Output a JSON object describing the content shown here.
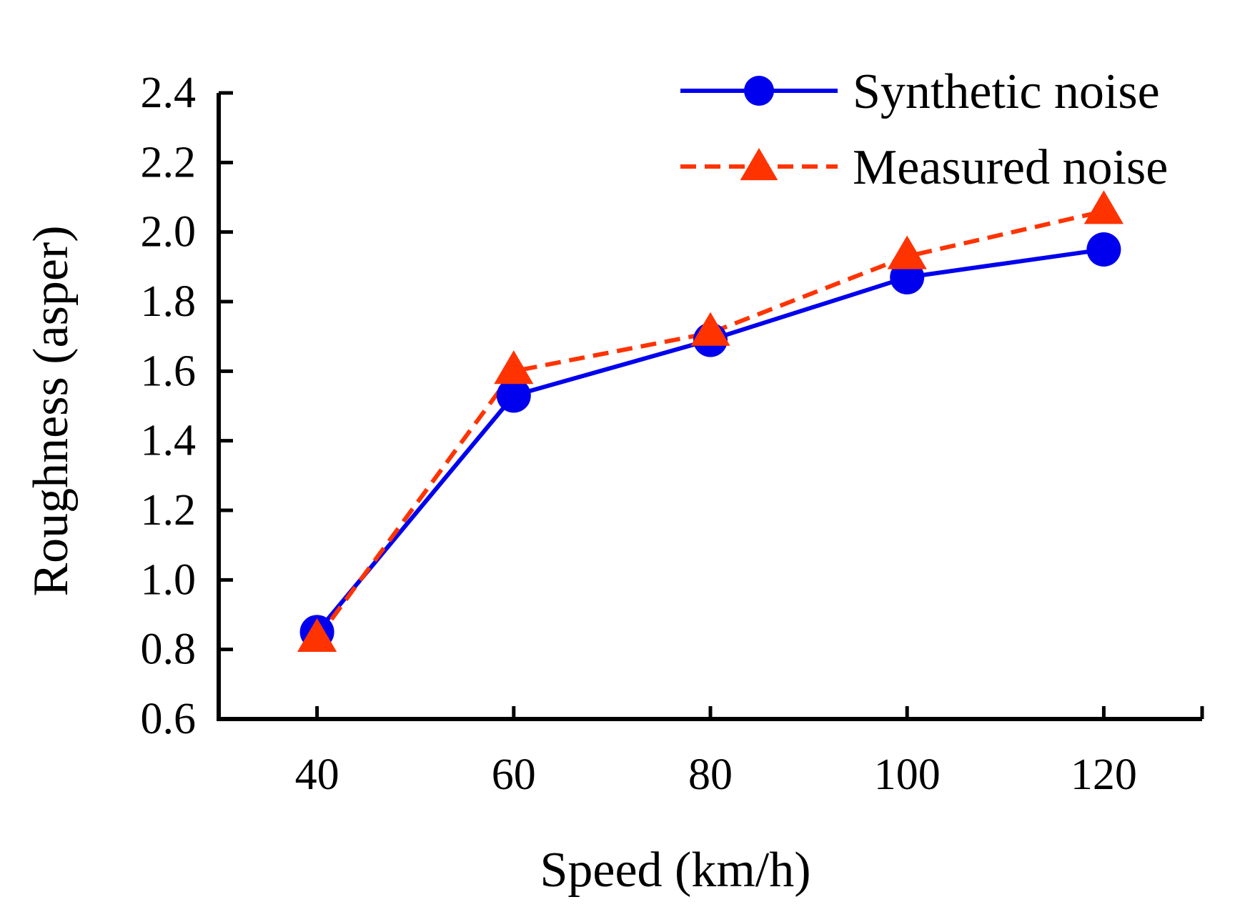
{
  "chart_data": {
    "type": "line",
    "title": "",
    "xlabel": "Speed (km/h)",
    "ylabel": "Roughness (asper)",
    "x": [
      40,
      60,
      80,
      100,
      120
    ],
    "x_tick_labels": [
      "40",
      "60",
      "80",
      "100",
      "120"
    ],
    "xlim": [
      30,
      130
    ],
    "ylim": [
      0.6,
      2.4
    ],
    "y_ticks": [
      0.6,
      0.8,
      1.0,
      1.2,
      1.4,
      1.6,
      1.8,
      2.0,
      2.2,
      2.4
    ],
    "y_tick_labels": [
      "0.6",
      "0.8",
      "1.0",
      "1.2",
      "1.4",
      "1.6",
      "1.8",
      "2.0",
      "2.2",
      "2.4"
    ],
    "grid": false,
    "legend_position": "top-right",
    "series": [
      {
        "name": "Synthetic noise",
        "values": [
          0.85,
          1.53,
          1.69,
          1.87,
          1.95
        ],
        "color": "#0000ee",
        "line_style": "solid",
        "marker": "circle"
      },
      {
        "name": "Measured noise",
        "values": [
          0.83,
          1.6,
          1.71,
          1.93,
          2.06
        ],
        "color": "#ff3300",
        "line_style": "dashed",
        "marker": "triangle"
      }
    ]
  }
}
